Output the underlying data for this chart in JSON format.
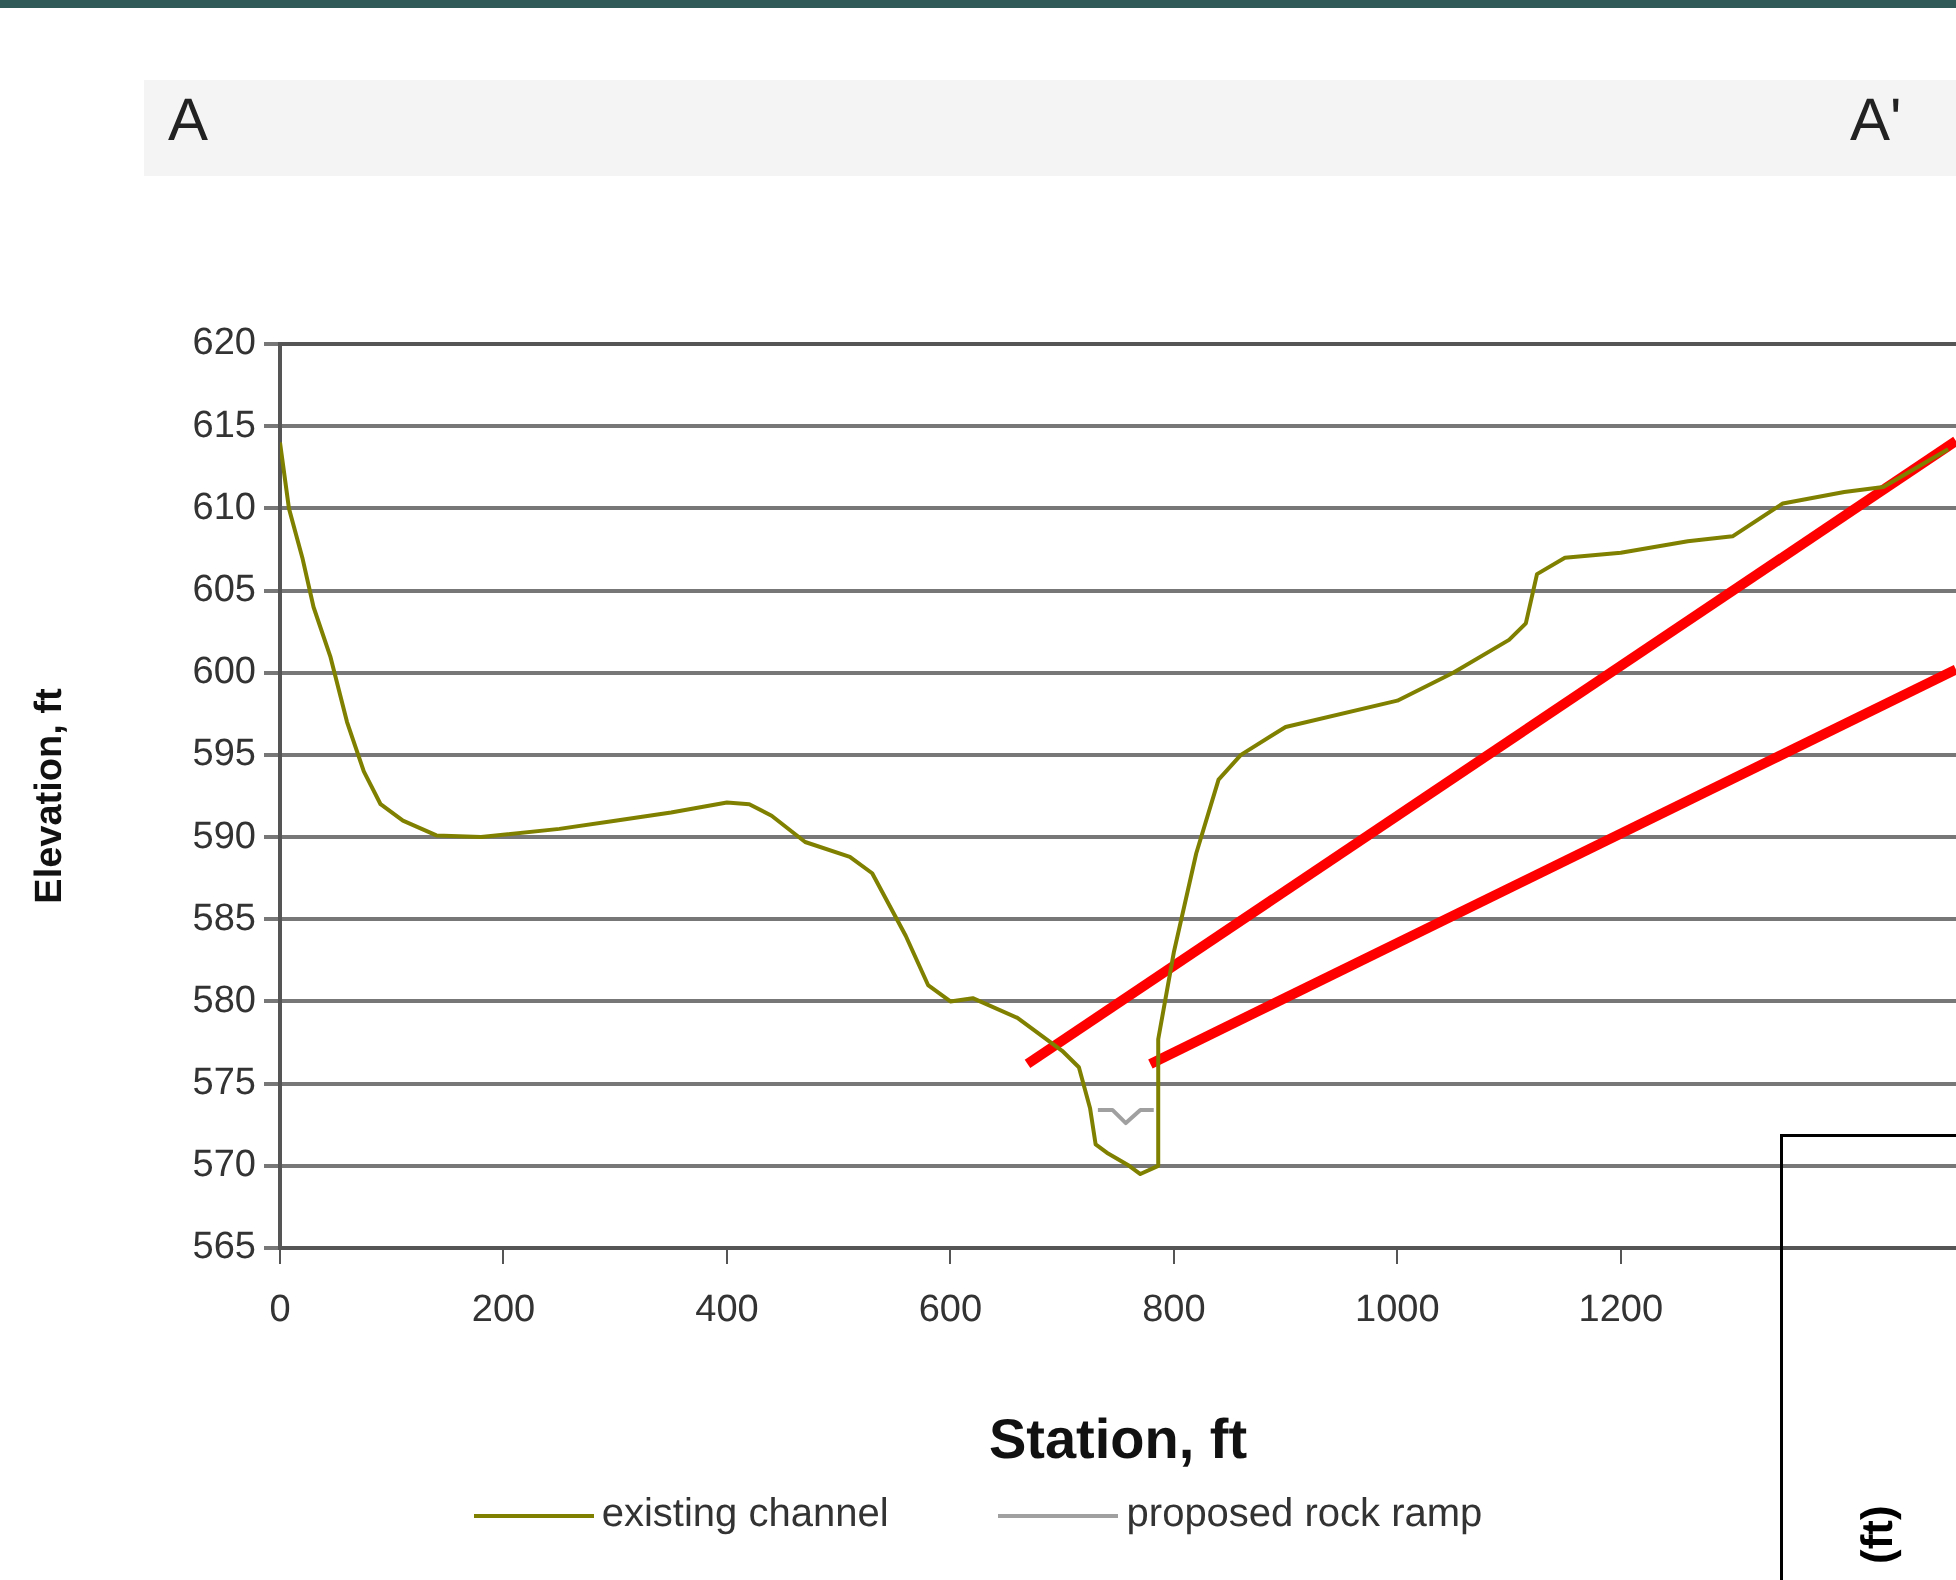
{
  "chart_data": {
    "type": "line",
    "xlabel": "Station, ft",
    "ylabel": "Elevation, ft",
    "annotations": [
      "A",
      "A'",
      "(ft)"
    ],
    "xlim": [
      0,
      1500
    ],
    "xticks": [
      0,
      200,
      400,
      600,
      800,
      1000,
      1200
    ],
    "ylim": [
      565,
      620
    ],
    "yticks": [
      565,
      570,
      575,
      580,
      585,
      590,
      595,
      600,
      605,
      610,
      615,
      620
    ],
    "grid": "y",
    "legend": "bottom",
    "marker": "none",
    "line_style": "solid",
    "series": [
      {
        "name": "existing channel",
        "color": "#808000",
        "x": [
          0,
          8,
          20,
          30,
          45,
          60,
          75,
          90,
          110,
          140,
          180,
          250,
          300,
          350,
          400,
          420,
          440,
          470,
          510,
          530,
          560,
          580,
          600,
          620,
          660,
          700,
          715,
          725,
          730,
          740,
          760,
          770,
          786,
          786,
          800,
          820,
          840,
          860,
          900,
          1000,
          1050,
          1100,
          1115,
          1125,
          1150,
          1200,
          1260,
          1300,
          1345,
          1400,
          1435,
          1493
        ],
        "values": [
          614,
          610,
          607,
          604,
          601,
          597,
          594,
          592,
          591,
          590.1,
          590,
          590.5,
          591,
          591.5,
          592.1,
          592,
          591.3,
          589.7,
          588.8,
          587.8,
          584,
          581,
          580,
          580.2,
          579,
          577,
          576,
          573.5,
          571.3,
          570.8,
          570,
          569.5,
          570,
          577.7,
          583,
          589,
          593.5,
          595,
          596.7,
          598.3,
          600,
          602,
          603,
          606,
          607,
          607.3,
          608,
          608.3,
          610.3,
          611,
          611.3,
          613.6
        ]
      },
      {
        "name": "proposed rock ramp",
        "color": "#a0a0a0",
        "x": [
          732,
          745,
          757,
          770,
          782
        ],
        "values": [
          573.4,
          573.4,
          572.6,
          573.4,
          573.4
        ]
      },
      {
        "color": "#ff0000",
        "x": [
          669,
          1500
        ],
        "values": [
          576.2,
          614.1
        ]
      },
      {
        "color": "#ff0000",
        "x": [
          779,
          1500
        ],
        "values": [
          576.2,
          600.2
        ]
      }
    ]
  }
}
